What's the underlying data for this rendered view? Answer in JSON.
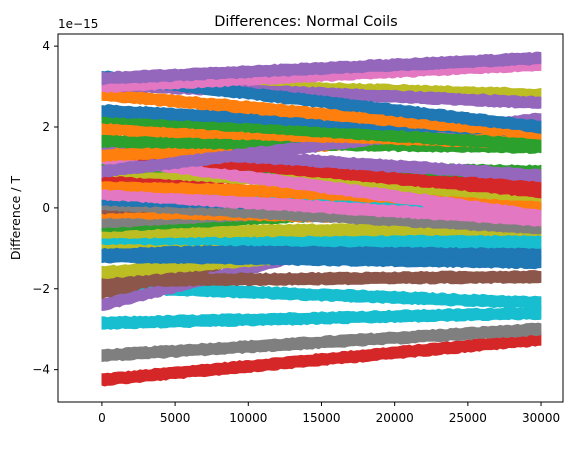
{
  "chart_data": {
    "type": "line",
    "title": "Differences: Normal Coils",
    "xlabel": "",
    "ylabel": "Difference / T",
    "y_offset_label": "1e−15",
    "xlim": [
      -3000,
      31500
    ],
    "ylim": [
      -4.8,
      4.3
    ],
    "x_ticks": [
      0,
      5000,
      10000,
      15000,
      20000,
      25000,
      30000
    ],
    "y_ticks": [
      -4,
      -2,
      0,
      2,
      4
    ],
    "y_tick_labels": [
      "−4",
      "−2",
      "0",
      "2",
      "4"
    ],
    "grid": false,
    "legend": "none",
    "x": [
      0,
      30000
    ],
    "series": [
      {
        "color": "#d62728",
        "values": [
          -4.25,
          -3.25
        ]
      },
      {
        "color": "#7f7f7f",
        "values": [
          -3.65,
          -3.0
        ]
      },
      {
        "color": "#17becf",
        "values": [
          -2.85,
          -2.6
        ]
      },
      {
        "color": "#17becf",
        "values": [
          -1.95,
          -2.35
        ]
      },
      {
        "color": "#9467bd",
        "values": [
          -2.4,
          0.3
        ]
      },
      {
        "color": "#8c564b",
        "values": [
          -2.1,
          0.6
        ]
      },
      {
        "color": "#8c564b",
        "values": [
          -1.8,
          -1.7
        ]
      },
      {
        "color": "#bcbd22",
        "values": [
          -1.6,
          -0.7
        ]
      },
      {
        "color": "#1f77b4",
        "values": [
          -1.2,
          -1.35
        ]
      },
      {
        "color": "#1f77b4",
        "values": [
          -1.0,
          -1.1
        ]
      },
      {
        "color": "#bcbd22",
        "values": [
          -0.85,
          -0.55
        ]
      },
      {
        "color": "#17becf",
        "values": [
          -0.75,
          -0.85
        ]
      },
      {
        "color": "#bcbd22",
        "values": [
          -0.6,
          -0.5
        ]
      },
      {
        "color": "#2ca02c",
        "values": [
          -0.45,
          0.1
        ]
      },
      {
        "color": "#7f7f7f",
        "values": [
          -0.35,
          0.2
        ]
      },
      {
        "color": "#ff7f0e",
        "values": [
          -0.1,
          -0.3
        ]
      },
      {
        "color": "#8c564b",
        "values": [
          0.0,
          0.5
        ]
      },
      {
        "color": "#7f7f7f",
        "values": [
          0.1,
          -0.5
        ]
      },
      {
        "color": "#1f77b4",
        "values": [
          0.2,
          0.0
        ]
      },
      {
        "color": "#17becf",
        "values": [
          0.45,
          -0.25
        ]
      },
      {
        "color": "#e377c2",
        "values": [
          0.35,
          -0.3
        ]
      },
      {
        "color": "#ff7f0e",
        "values": [
          0.6,
          0.1
        ]
      },
      {
        "color": "#d62728",
        "values": [
          0.8,
          0.65
        ]
      },
      {
        "color": "#bcbd22",
        "values": [
          0.95,
          0.3
        ]
      },
      {
        "color": "#2ca02c",
        "values": [
          1.05,
          0.9
        ]
      },
      {
        "color": "#e377c2",
        "values": [
          1.25,
          -0.2
        ]
      },
      {
        "color": "#d62728",
        "values": [
          1.4,
          0.4
        ]
      },
      {
        "color": "#9467bd",
        "values": [
          1.5,
          0.8
        ]
      },
      {
        "color": "#ff7f0e",
        "values": [
          1.3,
          1.8
        ]
      },
      {
        "color": "#2ca02c",
        "values": [
          1.65,
          1.5
        ]
      },
      {
        "color": "#9467bd",
        "values": [
          0.9,
          2.2
        ]
      },
      {
        "color": "#ff7f0e",
        "values": [
          1.95,
          1.6
        ]
      },
      {
        "color": "#2ca02c",
        "values": [
          2.25,
          1.55
        ]
      },
      {
        "color": "#1f77b4",
        "values": [
          2.4,
          1.9
        ]
      },
      {
        "color": "#ff7f0e",
        "values": [
          2.8,
          1.85
        ]
      },
      {
        "color": "#bcbd22",
        "values": [
          3.1,
          2.8
        ]
      },
      {
        "color": "#9467bd",
        "values": [
          3.05,
          2.6
        ]
      },
      {
        "color": "#1f77b4",
        "values": [
          3.25,
          2.0
        ]
      },
      {
        "color": "#e377c2",
        "values": [
          3.0,
          3.55
        ]
      },
      {
        "color": "#9467bd",
        "values": [
          3.2,
          3.7
        ]
      }
    ]
  }
}
